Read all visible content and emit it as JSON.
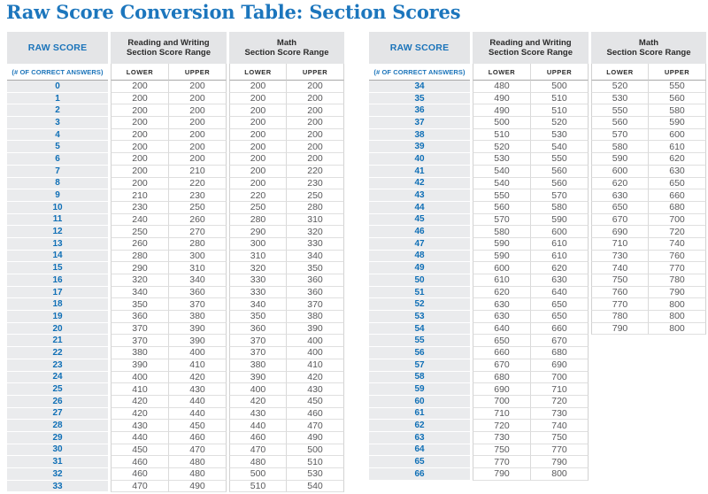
{
  "page_title": "Raw Score Conversion Table: Section Scores",
  "colors": {
    "title_blue": "#1c76bd",
    "raw_score_blue": "#0f6fb6",
    "header_text": "#2b2b2b",
    "value_text": "#58585a",
    "header_bg": "#e4e5e7",
    "raw_column_bg": "#eaebed"
  },
  "header": {
    "raw_score": "RAW SCORE",
    "raw_score_sub": "(# OF CORRECT ANSWERS)",
    "rw_line1": "Reading and Writing",
    "rw_line2": "Section Score Range",
    "math_line1": "Math",
    "math_line2": "Section Score Range",
    "lower": "LOWER",
    "upper": "UPPER"
  },
  "tables": [
    {
      "name": "left",
      "rows": [
        [
          0,
          200,
          200,
          200,
          200
        ],
        [
          1,
          200,
          200,
          200,
          200
        ],
        [
          2,
          200,
          200,
          200,
          200
        ],
        [
          3,
          200,
          200,
          200,
          200
        ],
        [
          4,
          200,
          200,
          200,
          200
        ],
        [
          5,
          200,
          200,
          200,
          200
        ],
        [
          6,
          200,
          200,
          200,
          200
        ],
        [
          7,
          200,
          210,
          200,
          220
        ],
        [
          8,
          200,
          220,
          200,
          230
        ],
        [
          9,
          210,
          230,
          220,
          250
        ],
        [
          10,
          230,
          250,
          250,
          280
        ],
        [
          11,
          240,
          260,
          280,
          310
        ],
        [
          12,
          250,
          270,
          290,
          320
        ],
        [
          13,
          260,
          280,
          300,
          330
        ],
        [
          14,
          280,
          300,
          310,
          340
        ],
        [
          15,
          290,
          310,
          320,
          350
        ],
        [
          16,
          320,
          340,
          330,
          360
        ],
        [
          17,
          340,
          360,
          330,
          360
        ],
        [
          18,
          350,
          370,
          340,
          370
        ],
        [
          19,
          360,
          380,
          350,
          380
        ],
        [
          20,
          370,
          390,
          360,
          390
        ],
        [
          21,
          370,
          390,
          370,
          400
        ],
        [
          22,
          380,
          400,
          370,
          400
        ],
        [
          23,
          390,
          410,
          380,
          410
        ],
        [
          24,
          400,
          420,
          390,
          420
        ],
        [
          25,
          410,
          430,
          400,
          430
        ],
        [
          26,
          420,
          440,
          420,
          450
        ],
        [
          27,
          420,
          440,
          430,
          460
        ],
        [
          28,
          430,
          450,
          440,
          470
        ],
        [
          29,
          440,
          460,
          460,
          490
        ],
        [
          30,
          450,
          470,
          470,
          500
        ],
        [
          31,
          460,
          480,
          480,
          510
        ],
        [
          32,
          460,
          480,
          500,
          530
        ],
        [
          33,
          470,
          490,
          510,
          540
        ]
      ]
    },
    {
      "name": "right",
      "rows": [
        [
          34,
          480,
          500,
          520,
          550
        ],
        [
          35,
          490,
          510,
          530,
          560
        ],
        [
          36,
          490,
          510,
          550,
          580
        ],
        [
          37,
          500,
          520,
          560,
          590
        ],
        [
          38,
          510,
          530,
          570,
          600
        ],
        [
          39,
          520,
          540,
          580,
          610
        ],
        [
          40,
          530,
          550,
          590,
          620
        ],
        [
          41,
          540,
          560,
          600,
          630
        ],
        [
          42,
          540,
          560,
          620,
          650
        ],
        [
          43,
          550,
          570,
          630,
          660
        ],
        [
          44,
          560,
          580,
          650,
          680
        ],
        [
          45,
          570,
          590,
          670,
          700
        ],
        [
          46,
          580,
          600,
          690,
          720
        ],
        [
          47,
          590,
          610,
          710,
          740
        ],
        [
          48,
          590,
          610,
          730,
          760
        ],
        [
          49,
          600,
          620,
          740,
          770
        ],
        [
          50,
          610,
          630,
          750,
          780
        ],
        [
          51,
          620,
          640,
          760,
          790
        ],
        [
          52,
          630,
          650,
          770,
          800
        ],
        [
          53,
          630,
          650,
          780,
          800
        ],
        [
          54,
          640,
          660,
          790,
          800
        ],
        [
          55,
          650,
          670,
          null,
          null
        ],
        [
          56,
          660,
          680,
          null,
          null
        ],
        [
          57,
          670,
          690,
          null,
          null
        ],
        [
          58,
          680,
          700,
          null,
          null
        ],
        [
          59,
          690,
          710,
          null,
          null
        ],
        [
          60,
          700,
          720,
          null,
          null
        ],
        [
          61,
          710,
          730,
          null,
          null
        ],
        [
          62,
          720,
          740,
          null,
          null
        ],
        [
          63,
          730,
          750,
          null,
          null
        ],
        [
          64,
          750,
          770,
          null,
          null
        ],
        [
          65,
          770,
          790,
          null,
          null
        ],
        [
          66,
          790,
          800,
          null,
          null
        ]
      ]
    }
  ]
}
